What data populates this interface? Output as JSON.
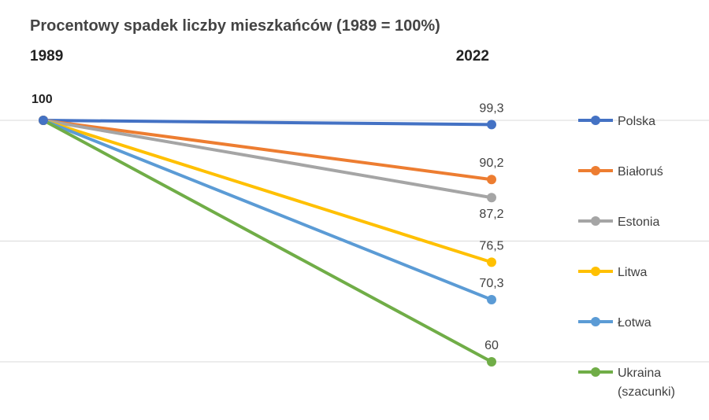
{
  "chart_data": {
    "type": "line",
    "title": "Procentowy spadek liczby mieszkańców (1989 = 100%)",
    "x": [
      "1989",
      "2022"
    ],
    "start_value_label": "100",
    "ylim": [
      50,
      105
    ],
    "grid_values": [
      100,
      80,
      60
    ],
    "grid": true,
    "legend_position": "right",
    "series": [
      {
        "name": "Polska",
        "values": [
          100,
          99.3
        ],
        "end_label": "99,3",
        "color": "#4472C4"
      },
      {
        "name": "Białoruś",
        "values": [
          100,
          90.2
        ],
        "end_label": "90,2",
        "color": "#ED7D31"
      },
      {
        "name": "Estonia",
        "values": [
          100,
          87.2
        ],
        "end_label": "87,2",
        "color": "#A5A5A5"
      },
      {
        "name": "Litwa",
        "values": [
          100,
          76.5
        ],
        "end_label": "76,5",
        "color": "#FFC000"
      },
      {
        "name": "Łotwa",
        "values": [
          100,
          70.3
        ],
        "end_label": "70,3",
        "color": "#5B9BD5"
      },
      {
        "name": "Ukraina",
        "name_line2": "(szacunki)",
        "values": [
          100,
          60
        ],
        "end_label": "60",
        "color": "#70AD47"
      }
    ]
  }
}
